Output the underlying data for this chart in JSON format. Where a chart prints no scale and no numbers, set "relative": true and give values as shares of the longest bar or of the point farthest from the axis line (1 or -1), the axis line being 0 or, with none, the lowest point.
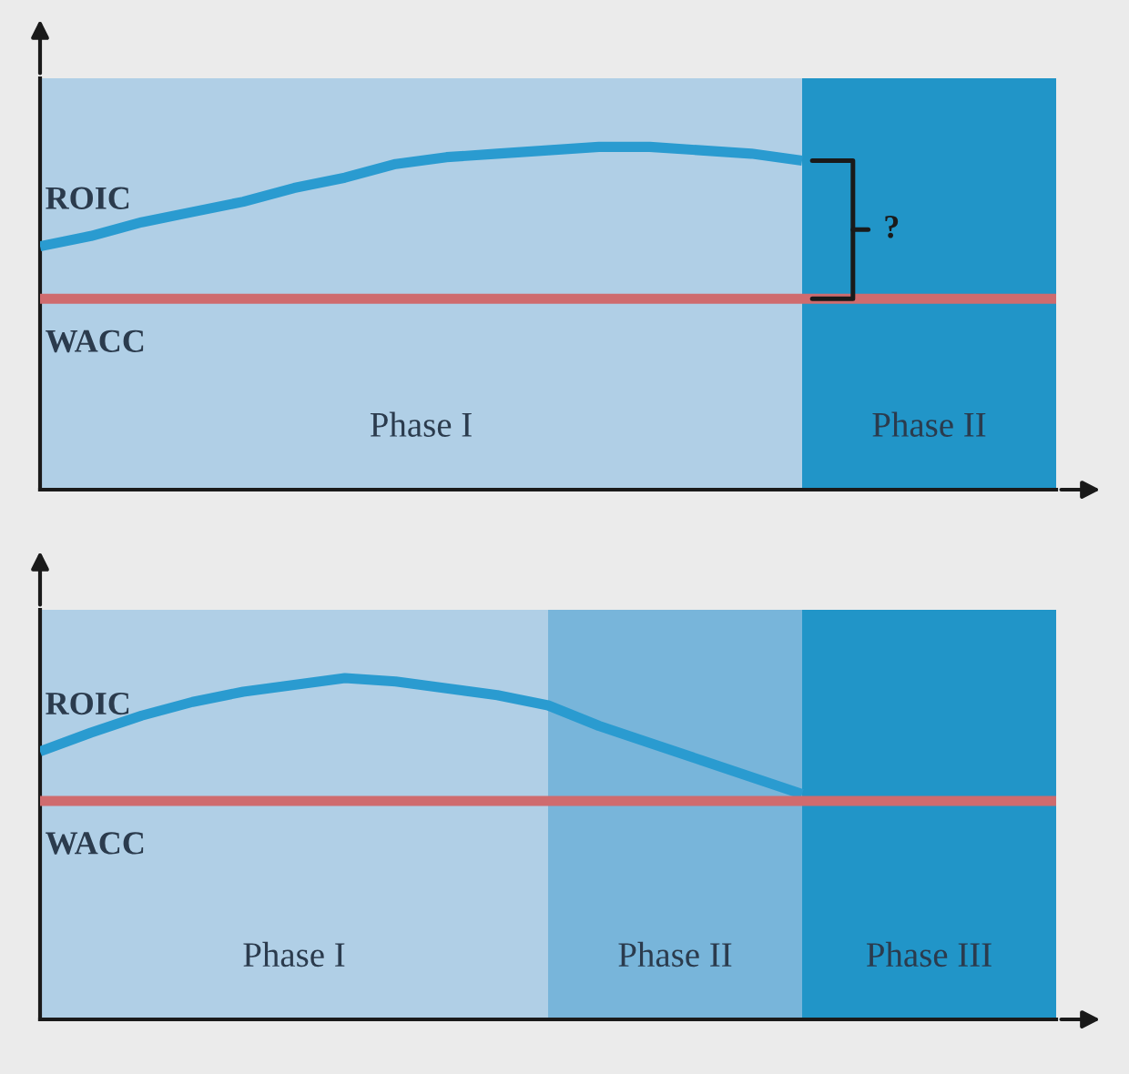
{
  "chart_data": [
    {
      "type": "line",
      "relative": true,
      "categories": [
        null,
        null,
        null,
        null,
        null,
        null,
        null,
        null,
        null,
        null,
        null,
        null,
        null,
        null,
        null,
        null,
        null,
        null,
        null,
        null,
        null
      ],
      "series": [
        {
          "name": "ROIC",
          "color": "#2a9bd0",
          "values": [
            0.71,
            0.74,
            0.78,
            0.81,
            0.84,
            0.88,
            0.91,
            0.95,
            0.97,
            0.98,
            0.99,
            1.0,
            1.0,
            0.99,
            0.98,
            0.96,
            null,
            null,
            null,
            null,
            null
          ]
        },
        {
          "name": "WACC",
          "color": "#cf6b6e",
          "values": [
            0.557,
            0.557,
            0.557,
            0.557,
            0.557,
            0.557,
            0.557,
            0.557,
            0.557,
            0.557,
            0.557,
            0.557,
            0.557,
            0.557,
            0.557,
            0.557,
            0.557,
            0.557,
            0.557,
            0.557,
            0.557
          ]
        }
      ],
      "annotations": [
        "Phase I",
        "Phase II",
        "?"
      ]
    },
    {
      "type": "line",
      "relative": true,
      "categories": [
        null,
        null,
        null,
        null,
        null,
        null,
        null,
        null,
        null,
        null,
        null,
        null,
        null,
        null,
        null,
        null,
        null,
        null,
        null,
        null,
        null
      ],
      "series": [
        {
          "name": "ROIC",
          "color": "#2a9bd0",
          "values": [
            0.785,
            0.84,
            0.89,
            0.93,
            0.96,
            0.98,
            1.0,
            0.99,
            0.97,
            0.95,
            0.92,
            0.86,
            0.81,
            0.76,
            0.71,
            0.66,
            null,
            null,
            null,
            null,
            null
          ]
        },
        {
          "name": "WACC",
          "color": "#cf6b6e",
          "values": [
            0.64,
            0.64,
            0.64,
            0.64,
            0.64,
            0.64,
            0.64,
            0.64,
            0.64,
            0.64,
            0.64,
            0.64,
            0.64,
            0.64,
            0.64,
            0.64,
            0.64,
            0.64,
            0.64,
            0.64,
            0.64
          ]
        }
      ],
      "annotations": [
        "Phase I",
        "Phase II",
        "Phase III"
      ]
    }
  ]
}
